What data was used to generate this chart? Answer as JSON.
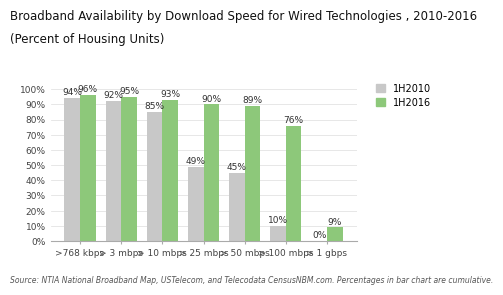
{
  "title_line1": "Broadband Availability by Download Speed for Wired Technologies , 2010-2016",
  "title_line2": "(Percent of Housing Units)",
  "categories": [
    ">768 kbps",
    "> 3 mbps",
    "> 10 mbps",
    "> 25 mbps",
    "> 50 mbps",
    "> 100 mbps",
    "> 1 gbps"
  ],
  "values_2010": [
    94,
    92,
    85,
    49,
    45,
    10,
    0
  ],
  "values_2016": [
    96,
    95,
    93,
    90,
    89,
    76,
    9
  ],
  "color_2010": "#c8c8c8",
  "color_2016": "#8dc87a",
  "legend_2010": "1H2010",
  "legend_2016": "1H2016",
  "ylim": [
    0,
    108
  ],
  "source": "Source: NTIA National Broadband Map, USTelecom, and Telecodata CensusNBM.com. Percentages in bar chart are cumulative.",
  "title_fontsize": 8.5,
  "tick_fontsize": 6.5,
  "label_fontsize": 6.5,
  "source_fontsize": 5.5,
  "legend_fontsize": 7.0,
  "bar_width": 0.38
}
